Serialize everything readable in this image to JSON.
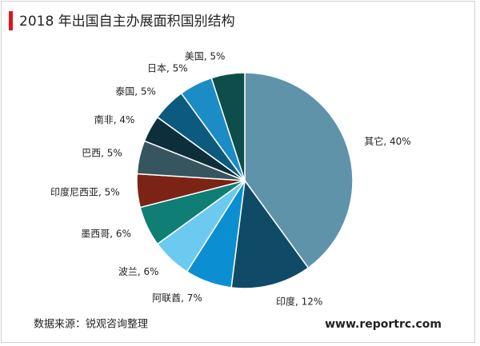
{
  "chart_data": {
    "type": "pie",
    "title": "2018 年出国自主办展面积国别结构",
    "values": [
      40,
      12,
      7,
      6,
      6,
      5,
      5,
      4,
      5,
      5,
      5
    ],
    "value_labels": [
      "其它, 40%",
      "印度, 12%",
      "阿联酋, 7%",
      "波兰, 6%",
      "墨西哥, 6%",
      "印度尼西亚, 5%",
      "巴西, 5%",
      "南非, 4%",
      "泰国, 5%",
      "日本, 5%",
      "美国, 5%"
    ],
    "colors": [
      "#5f93aa",
      "#0f4b66",
      "#0b8fd2",
      "#6ccaf0",
      "#0f7e74",
      "#7b2415",
      "#37555f",
      "#0d2f3c",
      "#0c5b7f",
      "#1b8cc6",
      "#0d4d4b"
    ],
    "source": "数据来源：锐观咨询整理",
    "website": "www.reportrc.com"
  }
}
